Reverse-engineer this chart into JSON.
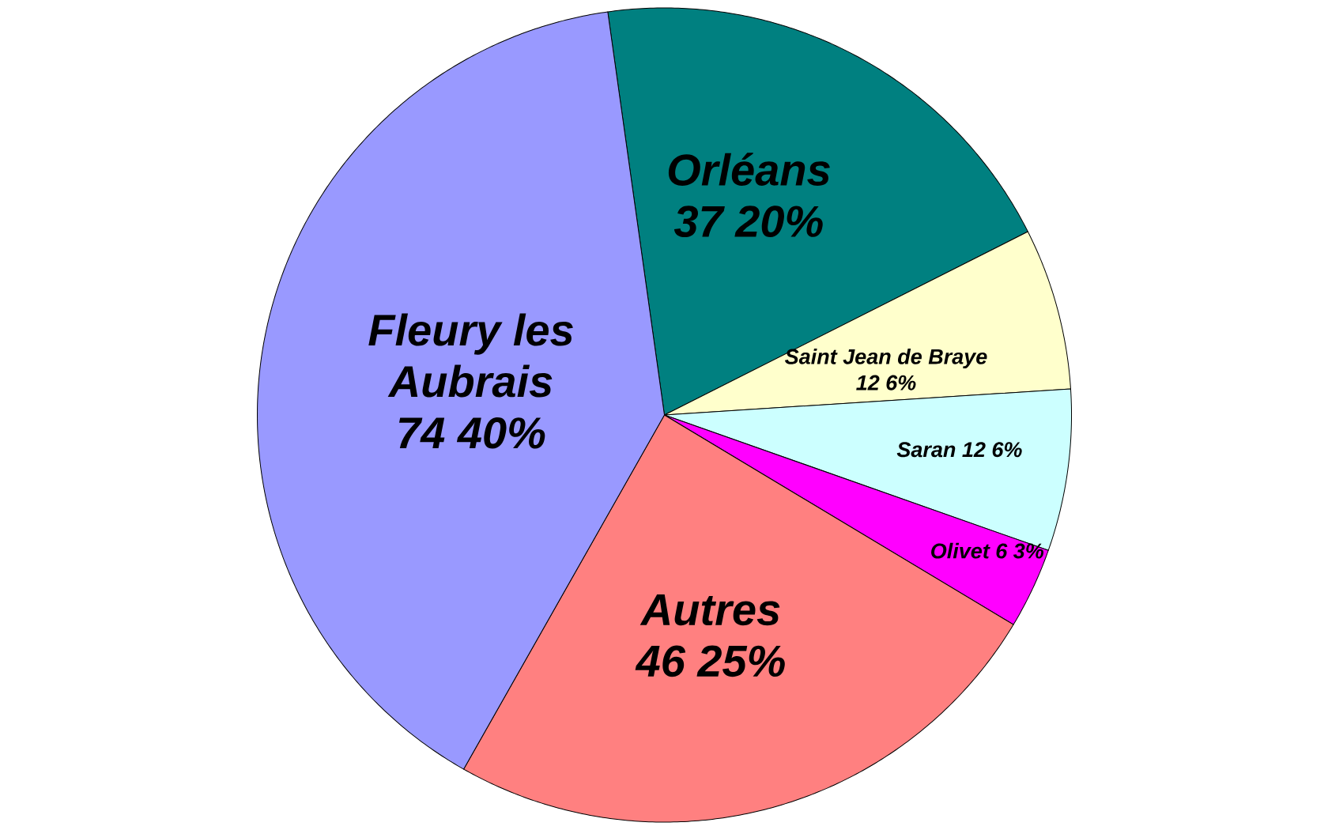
{
  "chart_data": {
    "type": "pie",
    "categories": [
      "Orléans",
      "Saint Jean de Braye",
      "Saran",
      "Olivet",
      "Autres",
      "Fleury les Aubrais"
    ],
    "values": [
      37,
      12,
      12,
      6,
      46,
      74
    ],
    "colors": [
      "#008080",
      "#ffffcc",
      "#ccffff",
      "#ff00ff",
      "#ff8080",
      "#9999ff"
    ],
    "value_labels": [
      "37 20%",
      "12 6%",
      "12 6%",
      "6 3%",
      "46 25%",
      "74 40%"
    ]
  }
}
